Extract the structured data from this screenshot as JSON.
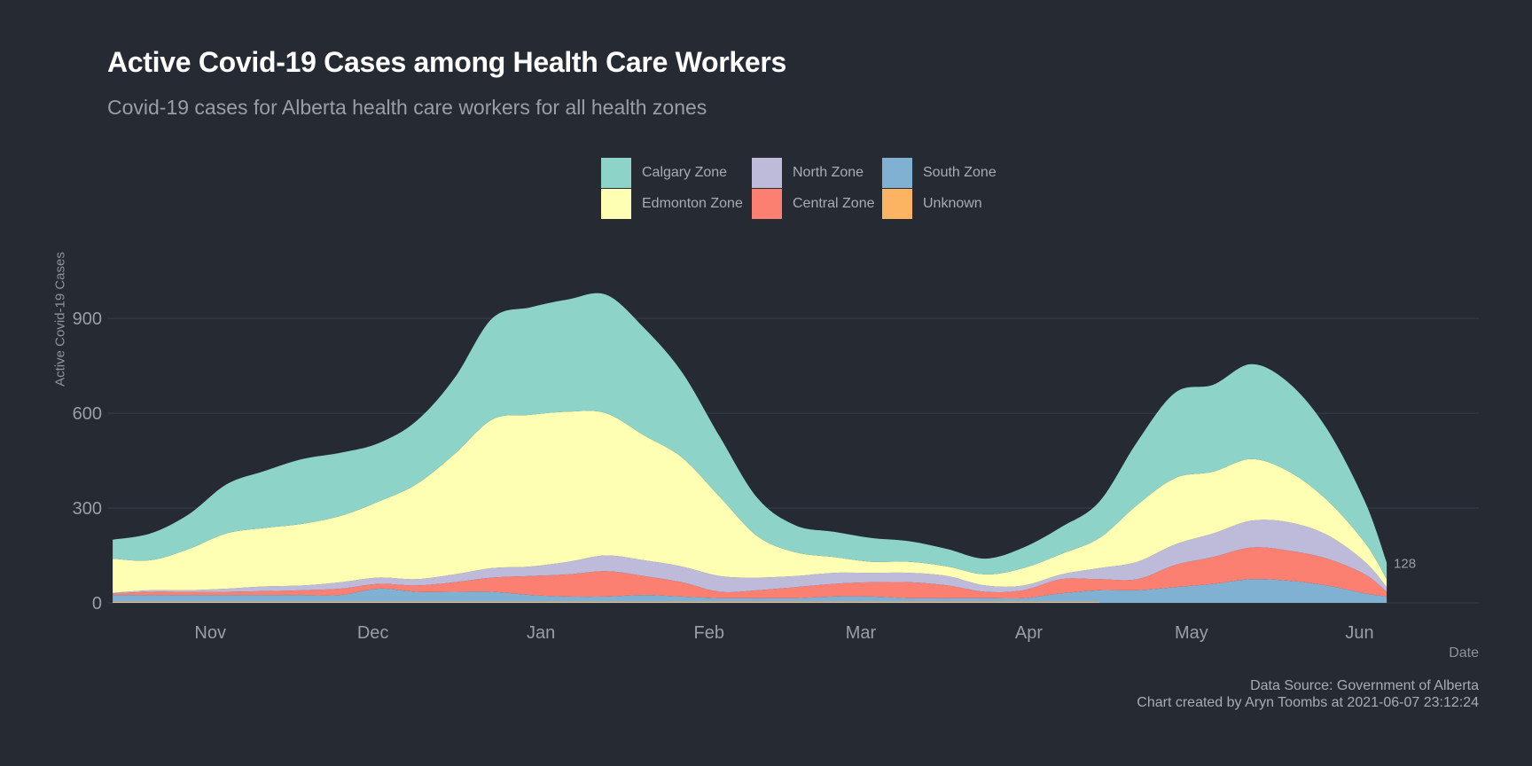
{
  "chart_data": {
    "type": "area",
    "stacked": true,
    "title": "Active Covid-19 Cases among Health Care Workers",
    "subtitle": "Covid-19 cases for Alberta health care workers for all health zones",
    "xlabel": "Date",
    "ylabel": "Active Covid-19 Cases",
    "x_ticks": [
      {
        "label": "Nov",
        "date": "2020-11-01"
      },
      {
        "label": "Dec",
        "date": "2020-12-01"
      },
      {
        "label": "Jan",
        "date": "2021-01-01"
      },
      {
        "label": "Feb",
        "date": "2021-02-01"
      },
      {
        "label": "Mar",
        "date": "2021-03-01"
      },
      {
        "label": "Apr",
        "date": "2021-04-01"
      },
      {
        "label": "May",
        "date": "2021-05-01"
      },
      {
        "label": "Jun",
        "date": "2021-06-01"
      }
    ],
    "y_ticks": [
      0,
      300,
      600,
      900
    ],
    "xlim": [
      "2020-10-13",
      "2021-06-23"
    ],
    "ylim": [
      0,
      1150
    ],
    "grid": "horizontal",
    "legend_position": "top",
    "end_annotation": "128",
    "dates": [
      "2020-10-14",
      "2020-10-21",
      "2020-10-28",
      "2020-11-04",
      "2020-11-11",
      "2020-11-18",
      "2020-11-25",
      "2020-12-02",
      "2020-12-09",
      "2020-12-16",
      "2020-12-23",
      "2020-12-30",
      "2021-01-06",
      "2021-01-13",
      "2021-01-20",
      "2021-01-27",
      "2021-02-03",
      "2021-02-10",
      "2021-02-17",
      "2021-02-24",
      "2021-03-03",
      "2021-03-10",
      "2021-03-17",
      "2021-03-24",
      "2021-03-31",
      "2021-04-07",
      "2021-04-14",
      "2021-04-21",
      "2021-04-28",
      "2021-05-05",
      "2021-05-12",
      "2021-05-19",
      "2021-05-26",
      "2021-06-02",
      "2021-06-06"
    ],
    "series": [
      {
        "name": "South Zone",
        "color": "#80b1d3",
        "values": [
          25,
          25,
          25,
          25,
          25,
          25,
          25,
          45,
          35,
          35,
          35,
          25,
          20,
          20,
          25,
          20,
          15,
          15,
          15,
          20,
          20,
          15,
          15,
          15,
          15,
          30,
          40,
          40,
          50,
          60,
          75,
          70,
          55,
          30,
          20
        ]
      },
      {
        "name": "Central Zone",
        "color": "#fb8072",
        "values": [
          5,
          10,
          10,
          10,
          12,
          15,
          20,
          15,
          20,
          30,
          45,
          60,
          70,
          80,
          60,
          45,
          20,
          25,
          35,
          40,
          45,
          50,
          40,
          20,
          25,
          45,
          35,
          35,
          70,
          85,
          100,
          95,
          85,
          60,
          15
        ]
      },
      {
        "name": "North Zone",
        "color": "#bebada",
        "values": [
          2,
          5,
          5,
          10,
          15,
          15,
          20,
          20,
          20,
          25,
          30,
          30,
          40,
          50,
          50,
          50,
          50,
          40,
          35,
          35,
          30,
          30,
          30,
          20,
          15,
          15,
          35,
          55,
          65,
          75,
          85,
          90,
          75,
          40,
          15
        ]
      },
      {
        "name": "Edmonton Zone",
        "color": "#ffffb3",
        "values": [
          108,
          95,
          130,
          175,
          185,
          195,
          210,
          240,
          300,
          380,
          470,
          480,
          475,
          450,
          395,
          345,
          250,
          130,
          75,
          50,
          35,
          35,
          30,
          35,
          55,
          65,
          95,
          180,
          210,
          195,
          195,
          160,
          110,
          60,
          25
        ]
      },
      {
        "name": "Calgary Zone",
        "color": "#8dd3c7",
        "values": [
          60,
          85,
          110,
          155,
          180,
          205,
          200,
          185,
          200,
          240,
          320,
          340,
          355,
          375,
          340,
          270,
          190,
          120,
          85,
          80,
          75,
          65,
          55,
          50,
          65,
          85,
          115,
          200,
          270,
          275,
          300,
          280,
          225,
          130,
          53
        ]
      },
      {
        "name": "Unknown",
        "color": "#fdb462",
        "values": [
          3,
          3,
          3,
          3,
          3,
          3,
          3,
          3,
          3,
          3,
          3,
          3,
          3,
          3,
          3,
          3,
          3,
          3,
          3,
          3,
          3,
          3,
          3,
          3,
          3,
          3,
          0,
          0,
          0,
          0,
          0,
          0,
          0,
          0,
          0
        ]
      }
    ]
  },
  "caption": {
    "source": "Data Source: Government of Alberta",
    "credit": "Chart created by Aryn Toombs at 2021-06-07 23:12:24"
  },
  "legend": [
    {
      "label": "Calgary Zone",
      "color": "#8dd3c7"
    },
    {
      "label": "Edmonton Zone",
      "color": "#ffffb3"
    },
    {
      "label": "North Zone",
      "color": "#bebada"
    },
    {
      "label": "Central Zone",
      "color": "#fb8072"
    },
    {
      "label": "South Zone",
      "color": "#80b1d3"
    },
    {
      "label": "Unknown",
      "color": "#fdb462"
    }
  ],
  "colors": {
    "background": "#252a33",
    "grid": "#3a3f49",
    "title": "#ffffff",
    "muted_text": "#9a9ea6"
  }
}
